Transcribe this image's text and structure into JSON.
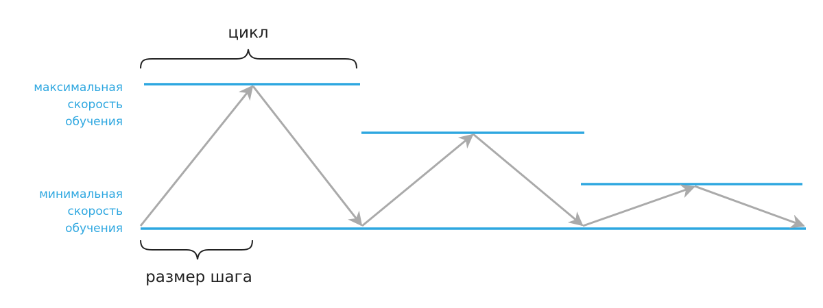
{
  "labels": {
    "cycle": "цикл",
    "step_size": "размер шага",
    "max_lr": [
      "максимальная",
      "скорость",
      "обучения"
    ],
    "min_lr": [
      "минимальная",
      "скорость",
      "обучения"
    ]
  },
  "colors": {
    "bound_lines": "#2ea7e0",
    "path": "#aaaaaa",
    "text": "#222222"
  }
}
